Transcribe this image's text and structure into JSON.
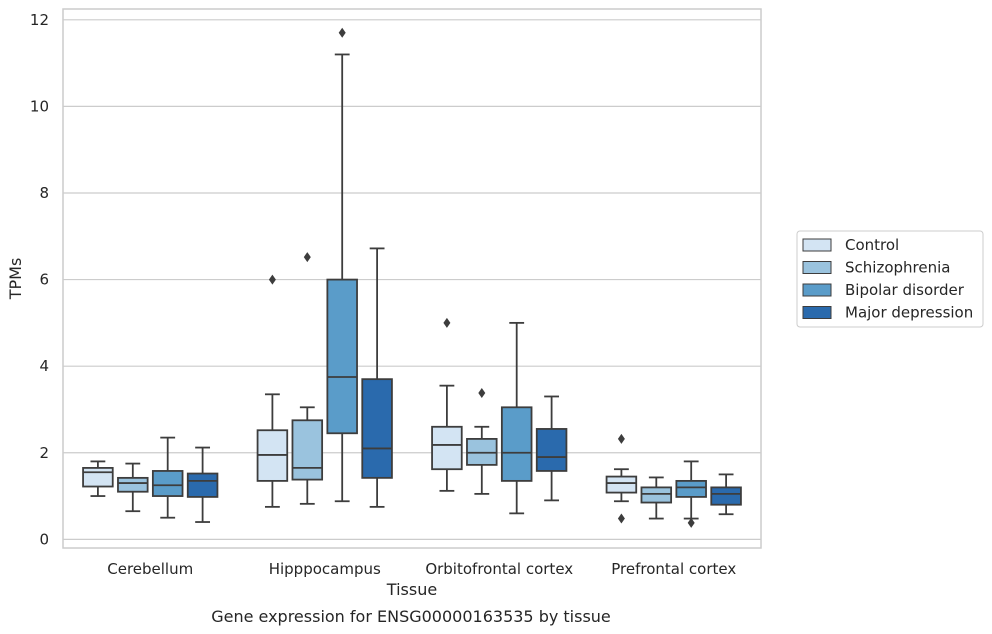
{
  "caption": "Gene expression for ENSG00000163535 by tissue",
  "chart_data": {
    "type": "box",
    "xlabel": "Tissue",
    "ylabel": "TPMs",
    "ylim": [
      -0.2,
      12.25
    ],
    "yticks": [
      0,
      2,
      4,
      6,
      8,
      10,
      12
    ],
    "grid": "horizontal",
    "legend_position": "right",
    "categories": [
      "Cerebellum",
      "Hipppocampus",
      "Orbitofrontal cortex",
      "Prefrontal cortex"
    ],
    "series": [
      {
        "name": "Control",
        "color": "#d3e4f3",
        "boxes": [
          {
            "whislo": 1.0,
            "q1": 1.22,
            "med": 1.55,
            "q3": 1.65,
            "whishi": 1.8,
            "fliers": []
          },
          {
            "whislo": 0.75,
            "q1": 1.35,
            "med": 1.95,
            "q3": 2.52,
            "whishi": 3.35,
            "fliers": [
              6.0
            ]
          },
          {
            "whislo": 1.12,
            "q1": 1.62,
            "med": 2.18,
            "q3": 2.6,
            "whishi": 3.55,
            "fliers": [
              5.0
            ]
          },
          {
            "whislo": 0.88,
            "q1": 1.08,
            "med": 1.3,
            "q3": 1.45,
            "whishi": 1.62,
            "fliers": [
              2.32,
              0.48
            ]
          }
        ]
      },
      {
        "name": "Schizophrenia",
        "color": "#9ac3de",
        "boxes": [
          {
            "whislo": 0.65,
            "q1": 1.1,
            "med": 1.3,
            "q3": 1.42,
            "whishi": 1.75,
            "fliers": []
          },
          {
            "whislo": 0.82,
            "q1": 1.38,
            "med": 1.65,
            "q3": 2.75,
            "whishi": 3.05,
            "fliers": [
              6.52
            ]
          },
          {
            "whislo": 1.05,
            "q1": 1.72,
            "med": 2.0,
            "q3": 2.32,
            "whishi": 2.6,
            "fliers": [
              3.38
            ]
          },
          {
            "whislo": 0.48,
            "q1": 0.85,
            "med": 1.05,
            "q3": 1.2,
            "whishi": 1.43,
            "fliers": []
          }
        ]
      },
      {
        "name": "Bipolar disorder",
        "color": "#5a9cc9",
        "boxes": [
          {
            "whislo": 0.5,
            "q1": 1.0,
            "med": 1.25,
            "q3": 1.58,
            "whishi": 2.35,
            "fliers": []
          },
          {
            "whislo": 0.88,
            "q1": 2.45,
            "med": 3.75,
            "q3": 6.0,
            "whishi": 11.2,
            "fliers": [
              11.7
            ]
          },
          {
            "whislo": 0.6,
            "q1": 1.35,
            "med": 2.0,
            "q3": 3.05,
            "whishi": 5.0,
            "fliers": []
          },
          {
            "whislo": 0.48,
            "q1": 0.98,
            "med": 1.2,
            "q3": 1.35,
            "whishi": 1.8,
            "fliers": [
              0.38
            ]
          }
        ]
      },
      {
        "name": "Major depression",
        "color": "#2a6aad",
        "boxes": [
          {
            "whislo": 0.4,
            "q1": 0.98,
            "med": 1.35,
            "q3": 1.52,
            "whishi": 2.12,
            "fliers": []
          },
          {
            "whislo": 0.75,
            "q1": 1.42,
            "med": 2.1,
            "q3": 3.7,
            "whishi": 6.72,
            "fliers": []
          },
          {
            "whislo": 0.9,
            "q1": 1.58,
            "med": 1.9,
            "q3": 2.55,
            "whishi": 3.3,
            "fliers": []
          },
          {
            "whislo": 0.58,
            "q1": 0.8,
            "med": 1.05,
            "q3": 1.2,
            "whishi": 1.5,
            "fliers": []
          }
        ]
      }
    ]
  }
}
